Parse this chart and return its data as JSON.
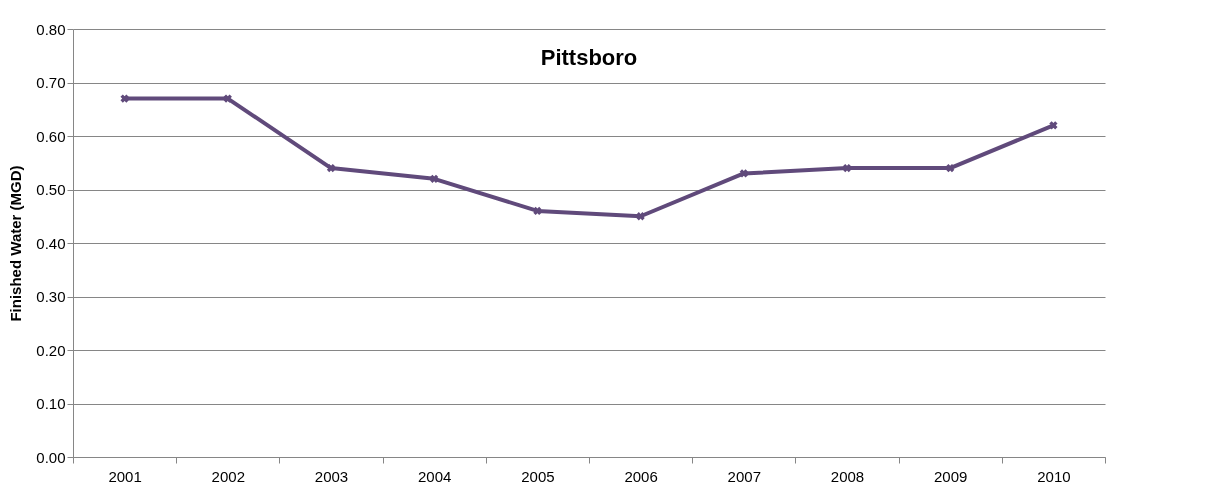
{
  "chart_data": {
    "type": "line",
    "title": "Pittsboro",
    "ylabel": "Finished Water (MGD)",
    "categories": [
      "2001",
      "2002",
      "2003",
      "2004",
      "2005",
      "2006",
      "2007",
      "2008",
      "2009",
      "2010"
    ],
    "series": [
      {
        "color": "#604a7b",
        "values": [
          0.67,
          0.67,
          0.54,
          0.52,
          0.46,
          0.45,
          0.53,
          0.54,
          0.54,
          0.62
        ]
      }
    ],
    "ylim": [
      0,
      0.8
    ],
    "yticks": [
      {
        "value": 0,
        "label": "0.00"
      },
      {
        "value": 0.1,
        "label": "0.10"
      },
      {
        "value": 0.2,
        "label": "0.20"
      },
      {
        "value": 0.3,
        "label": "0.30"
      },
      {
        "value": 0.4,
        "label": "0.40"
      },
      {
        "value": 0.5,
        "label": "0.50"
      },
      {
        "value": 0.6,
        "label": "0.60"
      },
      {
        "value": 0.7,
        "label": "0.70"
      },
      {
        "value": 0.8,
        "label": "0.80"
      }
    ],
    "grid": "y",
    "legend": false,
    "marker": "cross",
    "line_style": "solid"
  }
}
